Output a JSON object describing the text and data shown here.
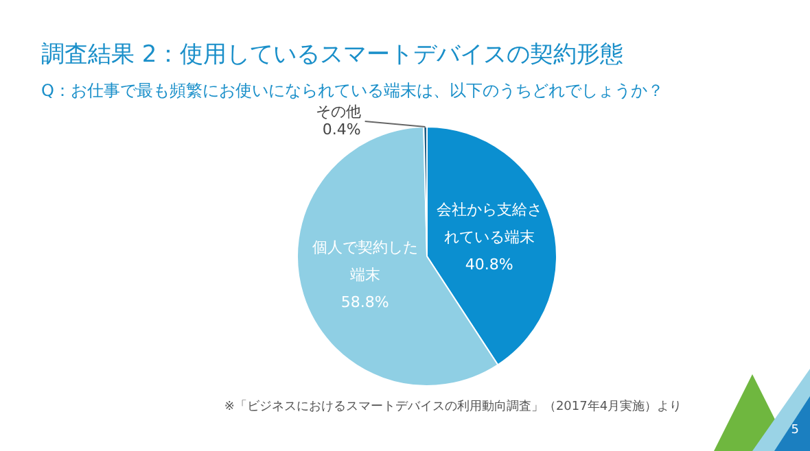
{
  "chart_data": {
    "type": "pie",
    "title": "調査結果 2：使用しているスマートデバイスの契約形態",
    "subtitle": "Q：お仕事で最も頻繁にお使いになられている端末は、以下のうちどれでしょうか？",
    "categories": [
      "会社から支給されている端末",
      "個人で契約した端末",
      "その他"
    ],
    "values": [
      40.8,
      58.8,
      0.4
    ],
    "colors": [
      "#0b8fd0",
      "#8fcfe4",
      "#1d5e86"
    ],
    "value_labels": [
      "40.8%",
      "58.8%",
      "0.4%"
    ],
    "annotations": [
      "※「ビジネスにおけるスマートデバイスの利用動向調査」（2017年4月実施）より",
      "5"
    ]
  }
}
